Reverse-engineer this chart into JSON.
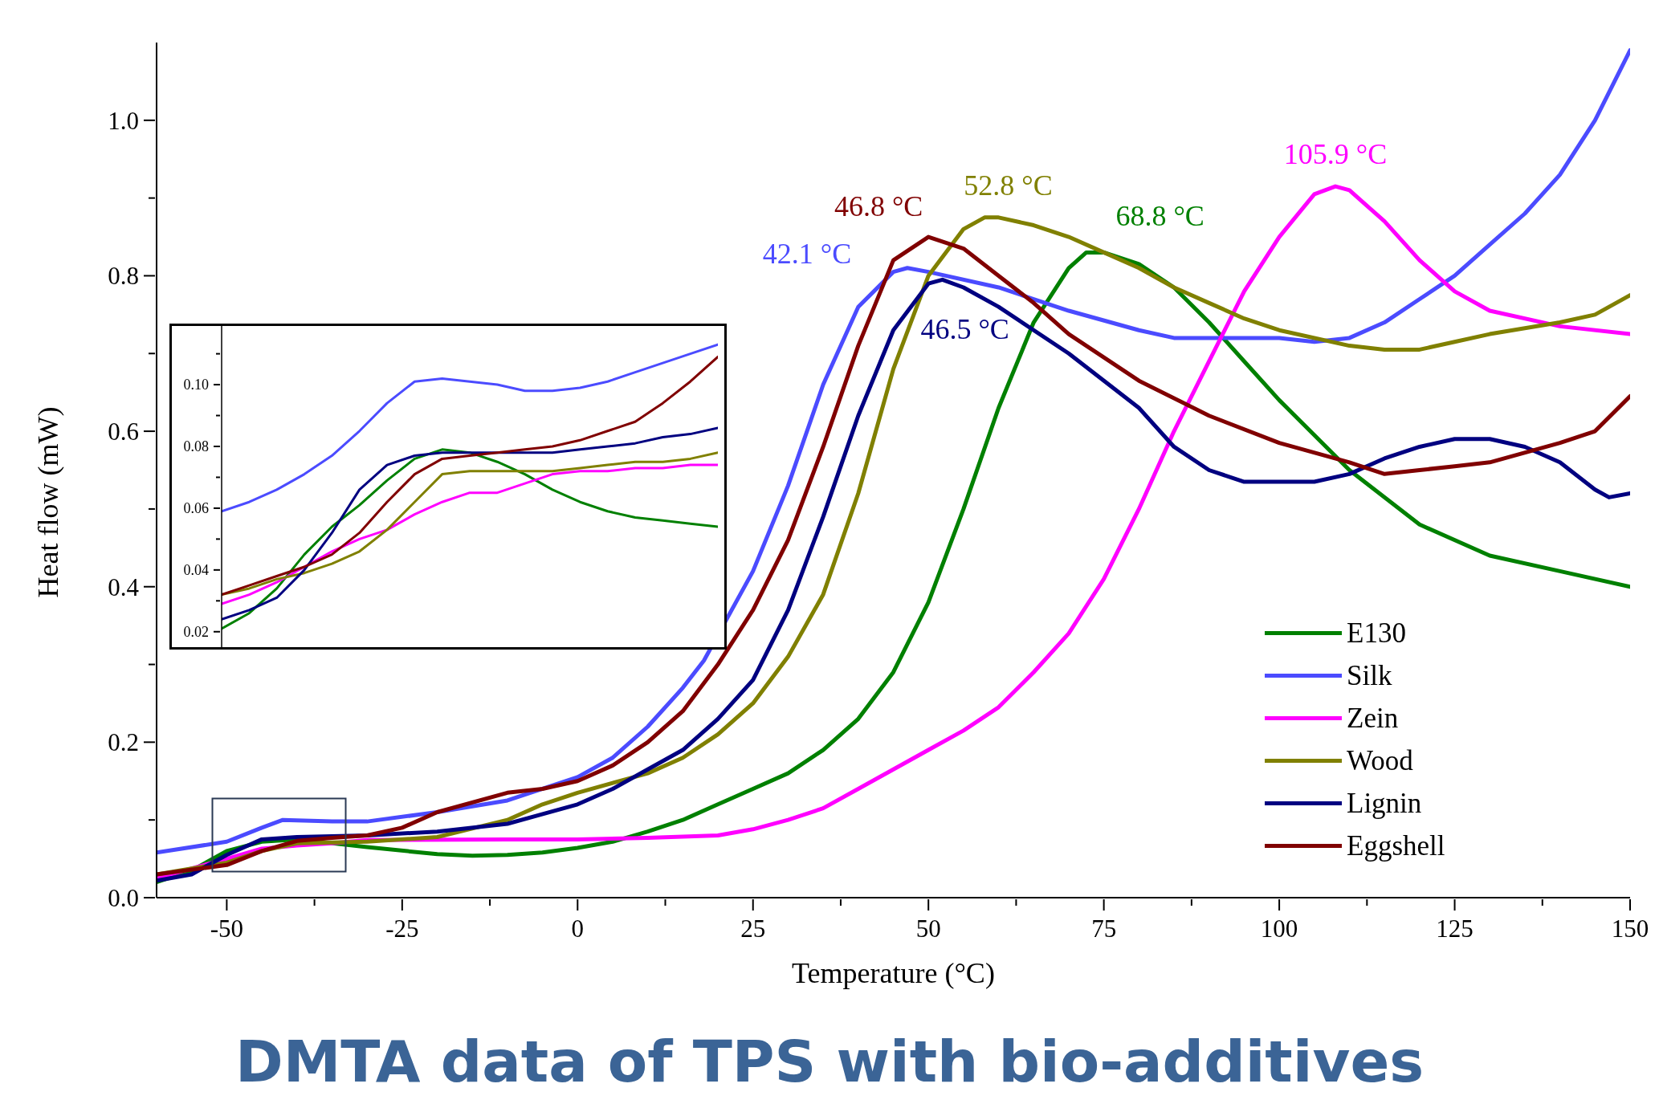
{
  "chart_data": [
    {
      "type": "line",
      "title": "DMTA data of TPS with bio-additives",
      "xlabel": "Temperature (°C)",
      "ylabel": "Heat flow (mW)",
      "xlim": [
        -60,
        150
      ],
      "xticks": [
        -50,
        {
          "value": -37.5,
          "label": null
        },
        -25,
        {
          "value": -12.5,
          "label": null
        },
        0,
        {
          "value": 12.5,
          "label": null
        },
        25,
        {
          "value": 37.5,
          "label": null
        },
        50,
        {
          "value": 62.5,
          "label": null
        },
        75,
        {
          "value": 87.5,
          "label": null
        },
        100,
        {
          "value": 112.5,
          "label": null
        },
        125,
        {
          "value": 137.5,
          "label": null
        },
        150
      ],
      "ylim": [
        0,
        1.1
      ],
      "yticks": [
        {
          "value": 0,
          "label": "0.0"
        },
        {
          "value": 0.1,
          "label": null
        },
        0.2,
        {
          "value": 0.3,
          "label": null
        },
        0.4,
        {
          "value": 0.5,
          "label": null
        },
        0.6,
        {
          "value": 0.7,
          "label": null
        },
        0.8,
        {
          "value": 0.9,
          "label": null
        },
        {
          "value": 1,
          "label": "1.0"
        }
      ],
      "legend": "bottom right",
      "marker": "none",
      "line_style": "solid",
      "annotations": [
        "68.8 °C",
        "42.1 °C",
        "105.9 °C",
        "52.8 °C",
        "46.5 °C",
        "46.8 °C"
      ],
      "series": [
        {
          "name": "E130",
          "color": "#008000",
          "x": [
            -60,
            -55,
            -50,
            -45,
            -40,
            -30,
            -20,
            -15,
            -10,
            -5,
            0,
            5,
            10,
            15,
            20,
            25,
            30,
            35,
            40,
            45,
            50,
            55,
            60,
            65,
            70,
            72.5,
            75,
            80,
            85,
            90,
            95,
            100,
            110,
            120,
            130,
            140,
            150
          ],
          "values": [
            0.02,
            0.035,
            0.06,
            0.072,
            0.075,
            0.065,
            0.056,
            0.054,
            0.055,
            0.058,
            0.064,
            0.072,
            0.085,
            0.1,
            0.12,
            0.14,
            0.16,
            0.19,
            0.23,
            0.29,
            0.38,
            0.5,
            0.63,
            0.74,
            0.81,
            0.83,
            0.83,
            0.815,
            0.785,
            0.74,
            0.69,
            0.64,
            0.55,
            0.48,
            0.44,
            0.42,
            0.4
          ]
        },
        {
          "name": "Silk",
          "color": "#4b4bff",
          "x": [
            -60,
            -50,
            -45,
            -42,
            -35,
            -30,
            -20,
            -10,
            0,
            5,
            10,
            15,
            18,
            25,
            30,
            35,
            40,
            45,
            47,
            50,
            60,
            70,
            80,
            85,
            90,
            100,
            105,
            110,
            115,
            120,
            125,
            130,
            135,
            140,
            145,
            150
          ],
          "values": [
            0.058,
            0.072,
            0.09,
            0.1,
            0.098,
            0.098,
            0.11,
            0.125,
            0.155,
            0.18,
            0.22,
            0.27,
            0.305,
            0.42,
            0.53,
            0.66,
            0.76,
            0.805,
            0.81,
            0.805,
            0.785,
            0.755,
            0.73,
            0.72,
            0.72,
            0.72,
            0.715,
            0.72,
            0.74,
            0.77,
            0.8,
            0.84,
            0.88,
            0.93,
            1.0,
            1.09
          ]
        },
        {
          "name": "Zein",
          "color": "#ff00ff",
          "x": [
            -60,
            -50,
            -45,
            -40,
            -35,
            -30,
            -10,
            0,
            10,
            20,
            25,
            30,
            35,
            40,
            45,
            50,
            55,
            60,
            65,
            70,
            75,
            80,
            85,
            90,
            95,
            100,
            105,
            108,
            110,
            115,
            120,
            125,
            130,
            140,
            150
          ],
          "values": [
            0.025,
            0.05,
            0.063,
            0.067,
            0.07,
            0.074,
            0.075,
            0.075,
            0.077,
            0.08,
            0.088,
            0.1,
            0.115,
            0.14,
            0.165,
            0.19,
            0.215,
            0.245,
            0.29,
            0.34,
            0.41,
            0.5,
            0.6,
            0.69,
            0.78,
            0.85,
            0.905,
            0.915,
            0.91,
            0.87,
            0.82,
            0.78,
            0.755,
            0.735,
            0.725
          ]
        },
        {
          "name": "Wood",
          "color": "#808000",
          "x": [
            -60,
            -50,
            -45,
            -40,
            -30,
            -20,
            -10,
            -5,
            0,
            10,
            15,
            20,
            25,
            30,
            35,
            40,
            45,
            50,
            55,
            58,
            60,
            65,
            70,
            75,
            80,
            85,
            90,
            95,
            100,
            110,
            115,
            120,
            125,
            130,
            140,
            145,
            150
          ],
          "values": [
            0.03,
            0.045,
            0.06,
            0.07,
            0.072,
            0.078,
            0.1,
            0.12,
            0.135,
            0.16,
            0.18,
            0.21,
            0.25,
            0.31,
            0.39,
            0.52,
            0.68,
            0.8,
            0.86,
            0.875,
            0.875,
            0.865,
            0.85,
            0.83,
            0.81,
            0.785,
            0.765,
            0.745,
            0.73,
            0.71,
            0.705,
            0.705,
            0.715,
            0.725,
            0.74,
            0.75,
            0.775
          ]
        },
        {
          "name": "Lignin",
          "color": "#000080",
          "x": [
            -60,
            -55,
            -50,
            -45,
            -40,
            -30,
            -20,
            -10,
            0,
            5,
            10,
            15,
            20,
            25,
            30,
            35,
            40,
            45,
            50,
            52,
            55,
            60,
            70,
            80,
            85,
            90,
            95,
            100,
            105,
            110,
            115,
            120,
            125,
            130,
            135,
            140,
            145,
            147,
            150
          ],
          "values": [
            0.022,
            0.03,
            0.055,
            0.075,
            0.078,
            0.08,
            0.085,
            0.095,
            0.12,
            0.14,
            0.165,
            0.19,
            0.23,
            0.28,
            0.37,
            0.49,
            0.62,
            0.73,
            0.79,
            0.795,
            0.785,
            0.76,
            0.7,
            0.63,
            0.58,
            0.55,
            0.535,
            0.535,
            0.535,
            0.545,
            0.565,
            0.58,
            0.59,
            0.59,
            0.58,
            0.56,
            0.525,
            0.515,
            0.52
          ]
        },
        {
          "name": "Eggshell",
          "color": "#800000",
          "x": [
            -60,
            -50,
            -45,
            -40,
            -35,
            -30,
            -25,
            -20,
            -10,
            -5,
            0,
            5,
            10,
            15,
            20,
            25,
            30,
            35,
            40,
            45,
            50,
            55,
            60,
            65,
            70,
            80,
            90,
            100,
            110,
            115,
            120,
            125,
            130,
            140,
            145,
            150
          ],
          "values": [
            0.03,
            0.042,
            0.06,
            0.073,
            0.077,
            0.08,
            0.09,
            0.11,
            0.135,
            0.14,
            0.15,
            0.17,
            0.2,
            0.24,
            0.3,
            0.37,
            0.46,
            0.58,
            0.71,
            0.82,
            0.85,
            0.835,
            0.8,
            0.765,
            0.725,
            0.665,
            0.62,
            0.585,
            0.56,
            0.545,
            0.55,
            0.555,
            0.56,
            0.585,
            0.6,
            0.645
          ]
        }
      ]
    },
    {
      "type": "line",
      "tick_labels": "y",
      "categories": [
        null,
        null,
        null,
        null,
        null,
        null,
        null,
        null,
        null,
        null,
        null,
        null,
        null,
        null,
        null,
        null,
        null,
        null,
        null
      ],
      "ylim": [
        0.015,
        0.119
      ],
      "yticks": [
        0.02,
        {
          "value": 0.03,
          "label": null
        },
        0.04,
        {
          "value": 0.05,
          "label": null
        },
        0.06,
        {
          "value": 0.07,
          "label": null
        },
        0.08,
        {
          "value": 0.09,
          "label": null
        },
        {
          "value": 0.1,
          "label": "0.10"
        },
        {
          "value": 0.11,
          "label": null
        }
      ],
      "marker": "none",
      "line_style": "solid",
      "series": [
        {
          "color": "#008000",
          "values": [
            0.021,
            0.026,
            0.034,
            0.045,
            0.054,
            0.061,
            0.069,
            0.076,
            0.079,
            0.078,
            0.075,
            0.071,
            0.066,
            0.062,
            0.059,
            0.057,
            0.056,
            0.055,
            0.054
          ]
        },
        {
          "color": "#4b4bff",
          "values": [
            0.059,
            0.062,
            0.066,
            0.071,
            0.077,
            0.085,
            0.094,
            0.101,
            0.102,
            0.101,
            0.1,
            0.098,
            0.098,
            0.099,
            0.101,
            0.104,
            0.107,
            0.11,
            0.113
          ]
        },
        {
          "color": "#ff00ff",
          "values": [
            0.029,
            0.032,
            0.036,
            0.041,
            0.046,
            0.05,
            0.053,
            0.058,
            0.062,
            0.065,
            0.065,
            0.068,
            0.071,
            0.072,
            0.072,
            0.073,
            0.073,
            0.074,
            0.074
          ]
        },
        {
          "color": "#808000",
          "values": [
            0.032,
            0.034,
            0.037,
            0.039,
            0.042,
            0.046,
            0.053,
            0.062,
            0.071,
            0.072,
            0.072,
            0.072,
            0.072,
            0.073,
            0.074,
            0.075,
            0.075,
            0.076,
            0.078
          ]
        },
        {
          "color": "#000080",
          "values": [
            0.024,
            0.027,
            0.031,
            0.04,
            0.052,
            0.066,
            0.074,
            0.077,
            0.078,
            0.078,
            0.078,
            0.078,
            0.078,
            0.079,
            0.08,
            0.081,
            0.083,
            0.084,
            0.086
          ]
        },
        {
          "color": "#800000",
          "values": [
            0.032,
            0.035,
            0.038,
            0.041,
            0.045,
            0.052,
            0.062,
            0.071,
            0.076,
            0.077,
            0.078,
            0.079,
            0.08,
            0.082,
            0.085,
            0.088,
            0.094,
            0.101,
            0.109
          ]
        }
      ]
    }
  ]
}
